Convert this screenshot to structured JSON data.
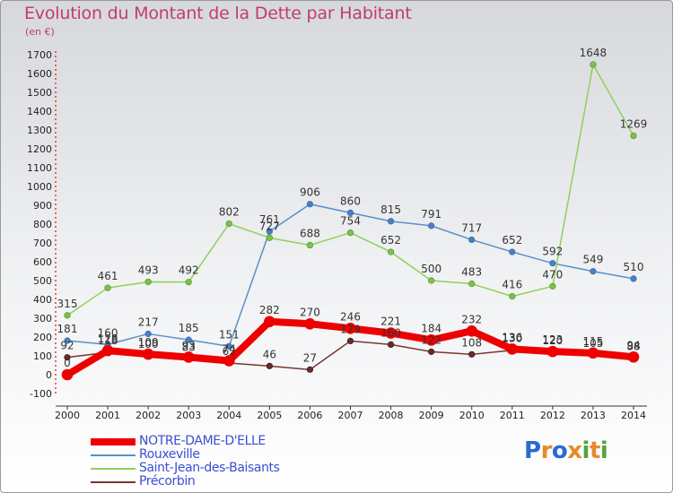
{
  "title": "Evolution du Montant de la Dette par Habitant",
  "subtitle": "(en €)",
  "logo": {
    "letters": [
      "P",
      "r",
      "o",
      "x",
      "i",
      "t",
      "i"
    ],
    "colors": [
      "#2a6bd1",
      "#e8892b",
      "#2a6bd1",
      "#e8892b",
      "#5aa33a",
      "#e8892b",
      "#5aa33a"
    ]
  },
  "chart_data": {
    "type": "line",
    "x": [
      2000,
      2001,
      2002,
      2003,
      2004,
      2005,
      2006,
      2007,
      2008,
      2009,
      2010,
      2011,
      2012,
      2013,
      2014
    ],
    "ylim": [
      -100,
      1700
    ],
    "yticks": [
      -100,
      0,
      100,
      200,
      300,
      400,
      500,
      600,
      700,
      800,
      900,
      1000,
      1100,
      1200,
      1300,
      1400,
      1500,
      1600,
      1700
    ],
    "grid": false,
    "legend_position": "bottom-left",
    "series": [
      {
        "name": "NOTRE-DAME-D'ELLE",
        "color": "#ee0000",
        "values": [
          0,
          128,
          109,
          93,
          74,
          282,
          270,
          246,
          221,
          184,
          232,
          136,
          123,
          115,
          94
        ],
        "labels": [
          "0",
          "128",
          "109",
          "93",
          "74",
          "282",
          "270",
          "246",
          "221",
          "184",
          "232",
          "136",
          "123",
          "115",
          "94"
        ]
      },
      {
        "name": "Rouxeville",
        "color": "#5a8fc8",
        "values": [
          181,
          160,
          217,
          185,
          151,
          761,
          906,
          860,
          815,
          791,
          717,
          652,
          592,
          549,
          510
        ],
        "labels": [
          "181",
          "160",
          "217",
          "185",
          "151",
          "761",
          "906",
          "860",
          "815",
          "791",
          "717",
          "652",
          "592",
          "549",
          "510"
        ]
      },
      {
        "name": "Saint-Jean-des-Baisants",
        "color": "#8ed15a",
        "values": [
          315,
          461,
          493,
          492,
          802,
          727,
          688,
          754,
          652,
          500,
          483,
          416,
          470,
          1648,
          1269
        ],
        "labels": [
          "315",
          "461",
          "493",
          "492",
          "802",
          "727",
          "688",
          "754",
          "652",
          "500",
          "483",
          "416",
          "470",
          "1648",
          "1269"
        ]
      },
      {
        "name": "Précorbin",
        "color": "#7a3535",
        "values": [
          92,
          118,
          100,
          83,
          62,
          46,
          27,
          179,
          160,
          122,
          108,
          130,
          120,
          105,
          88
        ],
        "labels": [
          "92",
          "118",
          "100",
          "83",
          "62",
          "46",
          "27",
          "179",
          "160",
          "122",
          "108",
          "130",
          "120",
          "105",
          "88"
        ]
      }
    ]
  }
}
